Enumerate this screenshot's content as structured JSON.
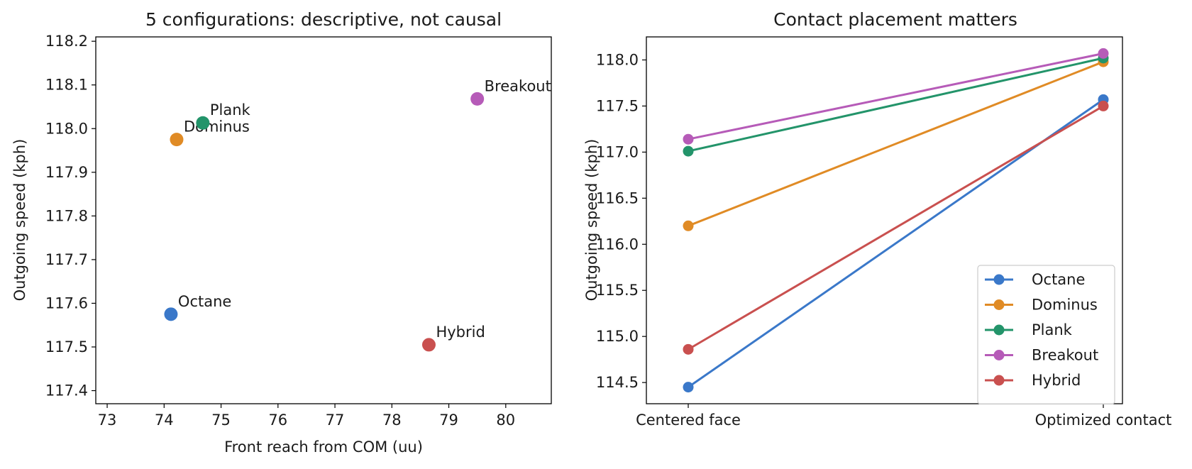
{
  "colors": {
    "Octane": "#3a78c9",
    "Dominus": "#e08b25",
    "Plank": "#23946a",
    "Breakout": "#b65bb8",
    "Hybrid": "#c9504f"
  },
  "chart_data": [
    {
      "type": "scatter",
      "title": "5 configurations: descriptive, not causal",
      "xlabel": "Front reach from COM (uu)",
      "ylabel": "Outgoing speed (kph)",
      "xlim": [
        72.8,
        80.8
      ],
      "ylim": [
        117.37,
        118.21
      ],
      "xticks": [
        "73",
        "74",
        "75",
        "76",
        "77",
        "78",
        "79",
        "80"
      ],
      "yticks": [
        "117.4",
        "117.5",
        "117.6",
        "117.7",
        "117.8",
        "117.9",
        "118.0",
        "118.1",
        "118.2"
      ],
      "points": [
        {
          "name": "Octane",
          "x": 74.12,
          "y": 117.575
        },
        {
          "name": "Dominus",
          "x": 74.22,
          "y": 117.975
        },
        {
          "name": "Plank",
          "x": 74.68,
          "y": 118.013
        },
        {
          "name": "Breakout",
          "x": 79.5,
          "y": 118.068
        },
        {
          "name": "Hybrid",
          "x": 78.65,
          "y": 117.505
        }
      ],
      "grid": false
    },
    {
      "type": "line",
      "title": "Contact placement matters",
      "xlabel": "",
      "ylabel": "Outgoing speed (kph)",
      "categories": [
        "Centered face",
        "Optimized contact"
      ],
      "ylim": [
        114.27,
        118.25
      ],
      "yticks": [
        "114.5",
        "115.0",
        "115.5",
        "116.0",
        "116.5",
        "117.0",
        "117.5",
        "118.0"
      ],
      "series": [
        {
          "name": "Octane",
          "values": [
            114.45,
            117.57
          ]
        },
        {
          "name": "Dominus",
          "values": [
            116.2,
            117.98
          ]
        },
        {
          "name": "Plank",
          "values": [
            117.01,
            118.02
          ]
        },
        {
          "name": "Breakout",
          "values": [
            117.14,
            118.07
          ]
        },
        {
          "name": "Hybrid",
          "values": [
            114.86,
            117.5
          ]
        }
      ],
      "legend": "lower-right",
      "grid": false
    }
  ]
}
